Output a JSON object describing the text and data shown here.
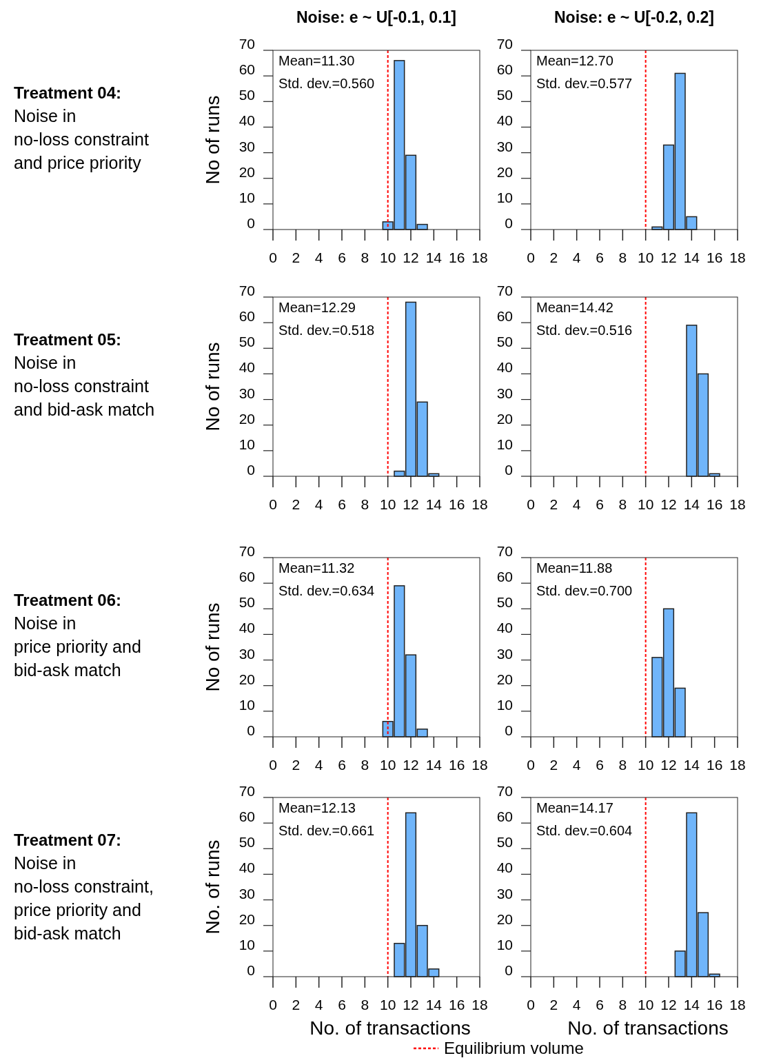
{
  "chart_data": [
    {
      "type": "histogram",
      "title": "Noise: e ~ U[-0.1, 0.1]",
      "ylabel": "No of runs",
      "bins": [
        9.5,
        10.5,
        11.5,
        12.5,
        13.5
      ],
      "values": [
        3,
        66,
        29,
        2
      ],
      "color": "#70b5fa",
      "xlim": [
        0,
        18
      ],
      "xticks": [
        0,
        2,
        4,
        6,
        8,
        10,
        12,
        14,
        16,
        18
      ],
      "ylim": [
        0,
        70
      ],
      "yticks": [
        0,
        10,
        20,
        30,
        40,
        50,
        60,
        70
      ],
      "annotations": [
        "Mean=11.30",
        "Std. dev.=0.560",
        "Treatment 04:",
        "Noise in",
        "no-loss constraint",
        "and price priority"
      ],
      "ref_lines": [
        {
          "axis": "x",
          "value": 10,
          "color": "#ff0000",
          "line_style": "dashed"
        }
      ]
    },
    {
      "type": "histogram",
      "title": "Noise: e ~ U[-0.2, 0.2]",
      "bins": [
        10.5,
        11.5,
        12.5,
        13.5,
        14.5
      ],
      "values": [
        1,
        33,
        61,
        5
      ],
      "color": "#70b5fa",
      "xlim": [
        0,
        18
      ],
      "xticks": [
        0,
        2,
        4,
        6,
        8,
        10,
        12,
        14,
        16,
        18
      ],
      "ylim": [
        0,
        70
      ],
      "yticks": [
        0,
        10,
        20,
        30,
        40,
        50,
        60,
        70
      ],
      "annotations": [
        "Mean=12.70",
        "Std. dev.=0.577"
      ],
      "ref_lines": [
        {
          "axis": "x",
          "value": 10,
          "color": "#ff0000",
          "line_style": "dashed"
        }
      ]
    },
    {
      "type": "histogram",
      "ylabel": "No of runs",
      "bins": [
        10.5,
        11.5,
        12.5,
        13.5,
        14.5
      ],
      "values": [
        2,
        68,
        29,
        1
      ],
      "color": "#70b5fa",
      "xlim": [
        0,
        18
      ],
      "xticks": [
        0,
        2,
        4,
        6,
        8,
        10,
        12,
        14,
        16,
        18
      ],
      "ylim": [
        0,
        70
      ],
      "yticks": [
        0,
        10,
        20,
        30,
        40,
        50,
        60,
        70
      ],
      "annotations": [
        "Mean=12.29",
        "Std. dev.=0.518",
        "Treatment 05:",
        "Noise in",
        "no-loss constraint",
        "and bid-ask match"
      ],
      "ref_lines": [
        {
          "axis": "x",
          "value": 10,
          "color": "#ff0000",
          "line_style": "dashed"
        }
      ]
    },
    {
      "type": "histogram",
      "bins": [
        13.5,
        14.5,
        15.5,
        16.5
      ],
      "values": [
        59,
        40,
        1
      ],
      "color": "#70b5fa",
      "xlim": [
        0,
        18
      ],
      "xticks": [
        0,
        2,
        4,
        6,
        8,
        10,
        12,
        14,
        16,
        18
      ],
      "ylim": [
        0,
        70
      ],
      "yticks": [
        0,
        10,
        20,
        30,
        40,
        50,
        60,
        70
      ],
      "annotations": [
        "Mean=14.42",
        "Std. dev.=0.516"
      ],
      "ref_lines": [
        {
          "axis": "x",
          "value": 10,
          "color": "#ff0000",
          "line_style": "dashed"
        }
      ]
    },
    {
      "type": "histogram",
      "ylabel": "No of runs",
      "bins": [
        9.5,
        10.5,
        11.5,
        12.5,
        13.5
      ],
      "values": [
        6,
        59,
        32,
        3
      ],
      "color": "#70b5fa",
      "xlim": [
        0,
        18
      ],
      "xticks": [
        0,
        2,
        4,
        6,
        8,
        10,
        12,
        14,
        16,
        18
      ],
      "ylim": [
        0,
        70
      ],
      "yticks": [
        0,
        10,
        20,
        30,
        40,
        50,
        60,
        70
      ],
      "annotations": [
        "Mean=11.32",
        "Std. dev.=0.634",
        "Treatment 06:",
        "Noise in",
        "price priority and",
        "bid-ask match"
      ],
      "ref_lines": [
        {
          "axis": "x",
          "value": 10,
          "color": "#ff0000",
          "line_style": "dashed"
        }
      ]
    },
    {
      "type": "histogram",
      "bins": [
        10.5,
        11.5,
        12.5,
        13.5
      ],
      "values": [
        31,
        50,
        19
      ],
      "color": "#70b5fa",
      "xlim": [
        0,
        18
      ],
      "xticks": [
        0,
        2,
        4,
        6,
        8,
        10,
        12,
        14,
        16,
        18
      ],
      "ylim": [
        0,
        70
      ],
      "yticks": [
        0,
        10,
        20,
        30,
        40,
        50,
        60,
        70
      ],
      "annotations": [
        "Mean=11.88",
        "Std. dev.=0.700"
      ],
      "ref_lines": [
        {
          "axis": "x",
          "value": 10,
          "color": "#ff0000",
          "line_style": "dashed"
        }
      ]
    },
    {
      "type": "histogram",
      "ylabel": "No. of runs",
      "xlabel": "No. of transactions",
      "bins": [
        10.5,
        11.5,
        12.5,
        13.5,
        14.5
      ],
      "values": [
        13,
        64,
        20,
        3
      ],
      "color": "#70b5fa",
      "xlim": [
        0,
        18
      ],
      "xticks": [
        0,
        2,
        4,
        6,
        8,
        10,
        12,
        14,
        16,
        18
      ],
      "ylim": [
        0,
        70
      ],
      "yticks": [
        0,
        10,
        20,
        30,
        40,
        50,
        60,
        70
      ],
      "annotations": [
        "Mean=12.13",
        "Std. dev.=0.661",
        "Treatment 07:",
        "Noise in",
        "no-loss constraint,",
        "price priority and",
        "bid-ask match"
      ],
      "ref_lines": [
        {
          "axis": "x",
          "value": 10,
          "color": "#ff0000",
          "line_style": "dashed",
          "label": "Equilibrium volume"
        }
      ]
    },
    {
      "type": "histogram",
      "xlabel": "No. of transactions",
      "bins": [
        12.5,
        13.5,
        14.5,
        15.5,
        16.5
      ],
      "values": [
        10,
        64,
        25,
        1
      ],
      "color": "#70b5fa",
      "xlim": [
        0,
        18
      ],
      "xticks": [
        0,
        2,
        4,
        6,
        8,
        10,
        12,
        14,
        16,
        18
      ],
      "ylim": [
        0,
        70
      ],
      "yticks": [
        0,
        10,
        20,
        30,
        40,
        50,
        60,
        70
      ],
      "annotations": [
        "Mean=14.17",
        "Std. dev.=0.604"
      ],
      "ref_lines": [
        {
          "axis": "x",
          "value": 10,
          "color": "#ff0000",
          "line_style": "dashed"
        }
      ]
    }
  ]
}
